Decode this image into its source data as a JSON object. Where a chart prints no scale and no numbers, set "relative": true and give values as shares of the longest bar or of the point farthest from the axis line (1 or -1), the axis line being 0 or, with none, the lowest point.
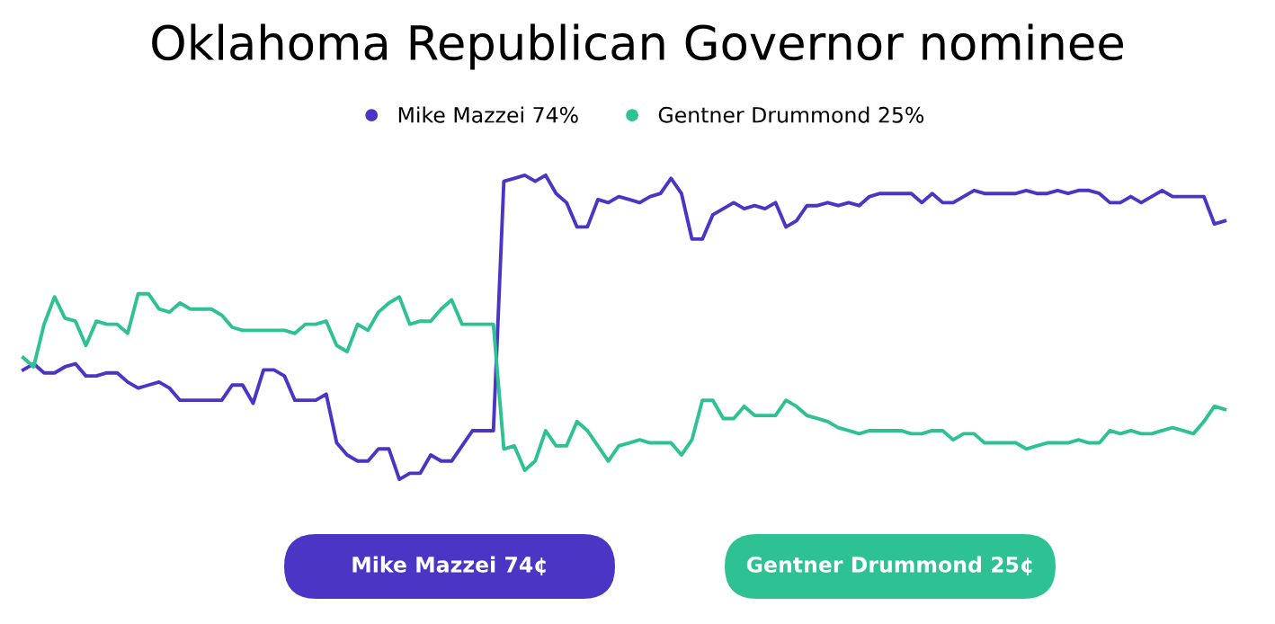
{
  "chart_data": {
    "type": "line",
    "title": "Oklahoma Republican Governor nominee",
    "relative": true,
    "legend": "top",
    "line_style": "solid",
    "tick_labels": false,
    "categories": [
      null,
      null,
      null,
      null,
      null,
      null,
      null,
      null,
      null,
      null,
      null,
      null,
      null,
      null,
      null,
      null,
      null,
      null,
      null,
      null,
      null,
      null,
      null,
      null,
      null,
      null,
      null,
      null,
      null,
      null,
      null,
      null,
      null,
      null,
      null,
      null,
      null,
      null,
      null,
      null,
      null,
      null,
      null,
      null,
      null,
      null,
      null,
      null,
      null,
      null,
      null,
      null,
      null,
      null,
      null,
      null,
      null,
      null,
      null,
      null,
      null,
      null,
      null,
      null,
      null,
      null,
      null,
      null,
      null,
      null,
      null,
      null,
      null,
      null,
      null,
      null,
      null,
      null,
      null,
      null,
      null,
      null,
      null,
      null,
      null,
      null,
      null,
      null,
      null,
      null,
      null,
      null,
      null,
      null,
      null,
      null,
      null,
      null,
      null,
      null,
      null,
      null,
      null,
      null,
      null,
      null,
      null,
      null,
      null,
      null,
      null,
      null,
      null,
      null,
      null,
      null
    ],
    "series": [
      {
        "name": "Mike Mazzei 74%",
        "color": "#4b35c4",
        "values": [
          0.36,
          0.38,
          0.35,
          0.35,
          0.37,
          0.38,
          0.34,
          0.34,
          0.35,
          0.35,
          0.32,
          0.3,
          0.31,
          0.32,
          0.3,
          0.26,
          0.26,
          0.26,
          0.26,
          0.26,
          0.31,
          0.31,
          0.25,
          0.36,
          0.36,
          0.34,
          0.26,
          0.26,
          0.26,
          0.28,
          0.12,
          0.08,
          0.06,
          0.06,
          0.1,
          0.1,
          0,
          0.02,
          0.02,
          0.08,
          0.06,
          0.06,
          0.11,
          0.16,
          0.16,
          0.16,
          0.98,
          0.99,
          1,
          0.98,
          1,
          0.94,
          0.91,
          0.83,
          0.83,
          0.92,
          0.91,
          0.93,
          0.92,
          0.91,
          0.93,
          0.94,
          0.99,
          0.94,
          0.79,
          0.79,
          0.87,
          0.89,
          0.91,
          0.89,
          0.9,
          0.89,
          0.91,
          0.83,
          0.85,
          0.9,
          0.9,
          0.91,
          0.9,
          0.91,
          0.9,
          0.93,
          0.94,
          0.94,
          0.94,
          0.94,
          0.91,
          0.94,
          0.91,
          0.91,
          0.93,
          0.95,
          0.94,
          0.94,
          0.94,
          0.94,
          0.95,
          0.94,
          0.94,
          0.95,
          0.94,
          0.95,
          0.95,
          0.94,
          0.91,
          0.91,
          0.93,
          0.91,
          0.93,
          0.95,
          0.93,
          0.93,
          0.93,
          0.93,
          0.84,
          0.85
        ]
      },
      {
        "name": "Gentner Drummond 25%",
        "color": "#2ec194",
        "values": [
          0.4,
          0.37,
          0.51,
          0.6,
          0.53,
          0.52,
          0.44,
          0.52,
          0.51,
          0.51,
          0.48,
          0.61,
          0.61,
          0.56,
          0.55,
          0.58,
          0.56,
          0.56,
          0.56,
          0.54,
          0.5,
          0.49,
          0.49,
          0.49,
          0.49,
          0.49,
          0.48,
          0.51,
          0.51,
          0.52,
          0.44,
          0.42,
          0.51,
          0.49,
          0.55,
          0.58,
          0.6,
          0.51,
          0.52,
          0.52,
          0.56,
          0.59,
          0.51,
          0.51,
          0.51,
          0.51,
          0.1,
          0.11,
          0.03,
          0.06,
          0.16,
          0.11,
          0.11,
          0.19,
          0.16,
          0.11,
          0.06,
          0.11,
          0.12,
          0.13,
          0.12,
          0.12,
          0.12,
          0.08,
          0.13,
          0.26,
          0.26,
          0.2,
          0.2,
          0.24,
          0.21,
          0.21,
          0.21,
          0.26,
          0.24,
          0.21,
          0.2,
          0.19,
          0.17,
          0.16,
          0.15,
          0.16,
          0.16,
          0.16,
          0.16,
          0.15,
          0.15,
          0.16,
          0.16,
          0.13,
          0.15,
          0.15,
          0.12,
          0.12,
          0.12,
          0.12,
          0.1,
          0.11,
          0.12,
          0.12,
          0.12,
          0.13,
          0.12,
          0.12,
          0.16,
          0.15,
          0.16,
          0.15,
          0.15,
          0.16,
          0.17,
          0.16,
          0.15,
          0.19,
          0.24,
          0.23
        ]
      }
    ],
    "annotations": [
      "Mike Mazzei 74¢",
      "Gentner Drummond 25¢"
    ]
  }
}
